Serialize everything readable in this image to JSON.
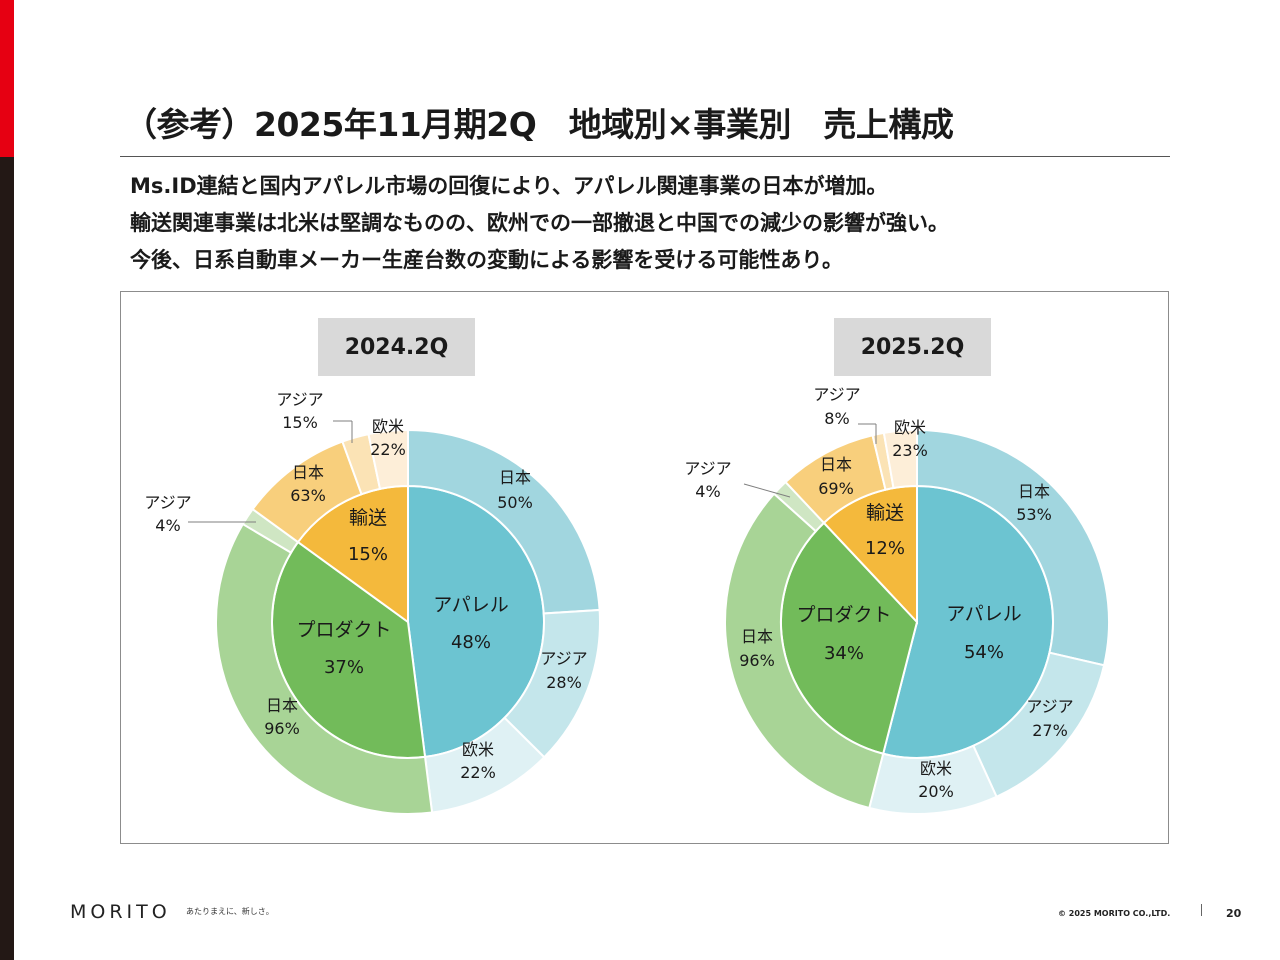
{
  "title": "（参考）2025年11月期2Q　地域別×事業別　売上構成",
  "summary": [
    "Ms.ID連結と国内アパレル市場の回復により、アパレル関連事業の日本が増加。",
    "輸送関連事業は北米は堅調なものの、欧州での一部撤退と中国での減少の影響が強い。",
    "今後、日系自動車メーカー生産台数の変動による影響を受ける可能性あり。"
  ],
  "colors": {
    "accent_red": "#e60012",
    "apparel_inner": "#6cc4d1",
    "product_inner": "#72bb5a",
    "transport_inner": "#f4b93c",
    "apparel_japan": "#a1d6df",
    "apparel_asia": "#c4e6eb",
    "apparel_europe": "#dff1f4",
    "product_japan": "#a8d496",
    "product_asia": "#cfe6c3",
    "transport_japan": "#f8cf7c",
    "transport_asia": "#fbe3b5",
    "transport_europe": "#fdeed8"
  },
  "chart_data": [
    {
      "type": "pie",
      "title": "2024.2Q",
      "inner": [
        {
          "key": "apparel",
          "name": "アパレル",
          "value": 48,
          "label": "48%"
        },
        {
          "key": "product",
          "name": "プロダクト",
          "value": 37,
          "label": "37%"
        },
        {
          "key": "transport",
          "name": "輸送",
          "value": 15,
          "label": "15%"
        }
      ],
      "outer": [
        {
          "key": "apparel_japan",
          "segment": "apparel",
          "name": "日本",
          "value": 50,
          "label": "50%"
        },
        {
          "key": "apparel_asia",
          "segment": "apparel",
          "name": "アジア",
          "value": 28,
          "label": "28%"
        },
        {
          "key": "apparel_europe",
          "segment": "apparel",
          "name": "欧米",
          "value": 22,
          "label": "22%"
        },
        {
          "key": "product_japan",
          "segment": "product",
          "name": "日本",
          "value": 96,
          "label": "96%"
        },
        {
          "key": "product_asia",
          "segment": "product",
          "name": "アジア",
          "value": 4,
          "label": "4%"
        },
        {
          "key": "transport_japan",
          "segment": "transport",
          "name": "日本",
          "value": 63,
          "label": "63%"
        },
        {
          "key": "transport_asia",
          "segment": "transport",
          "name": "アジア",
          "value": 15,
          "label": "15%"
        },
        {
          "key": "transport_europe",
          "segment": "transport",
          "name": "欧米",
          "value": 22,
          "label": "22%"
        }
      ]
    },
    {
      "type": "pie",
      "title": "2025.2Q",
      "inner": [
        {
          "key": "apparel",
          "name": "アパレル",
          "value": 54,
          "label": "54%"
        },
        {
          "key": "product",
          "name": "プロダクト",
          "value": 34,
          "label": "34%"
        },
        {
          "key": "transport",
          "name": "輸送",
          "value": 12,
          "label": "12%"
        }
      ],
      "outer": [
        {
          "key": "apparel_japan",
          "segment": "apparel",
          "name": "日本",
          "value": 53,
          "label": "53%"
        },
        {
          "key": "apparel_asia",
          "segment": "apparel",
          "name": "アジア",
          "value": 27,
          "label": "27%"
        },
        {
          "key": "apparel_europe",
          "segment": "apparel",
          "name": "欧米",
          "value": 20,
          "label": "20%"
        },
        {
          "key": "product_japan",
          "segment": "product",
          "name": "日本",
          "value": 96,
          "label": "96%"
        },
        {
          "key": "product_asia",
          "segment": "product",
          "name": "アジア",
          "value": 4,
          "label": "4%"
        },
        {
          "key": "transport_japan",
          "segment": "transport",
          "name": "日本",
          "value": 69,
          "label": "69%"
        },
        {
          "key": "transport_asia",
          "segment": "transport",
          "name": "アジア",
          "value": 8,
          "label": "8%"
        },
        {
          "key": "transport_europe",
          "segment": "transport",
          "name": "欧米",
          "value": 23,
          "label": "23%"
        }
      ]
    }
  ],
  "footer": {
    "logo": "MORITO",
    "tagline": "あたりまえに、新しさ。",
    "copyright": "© 2025 MORITO CO.,LTD.",
    "page_number": "20"
  }
}
